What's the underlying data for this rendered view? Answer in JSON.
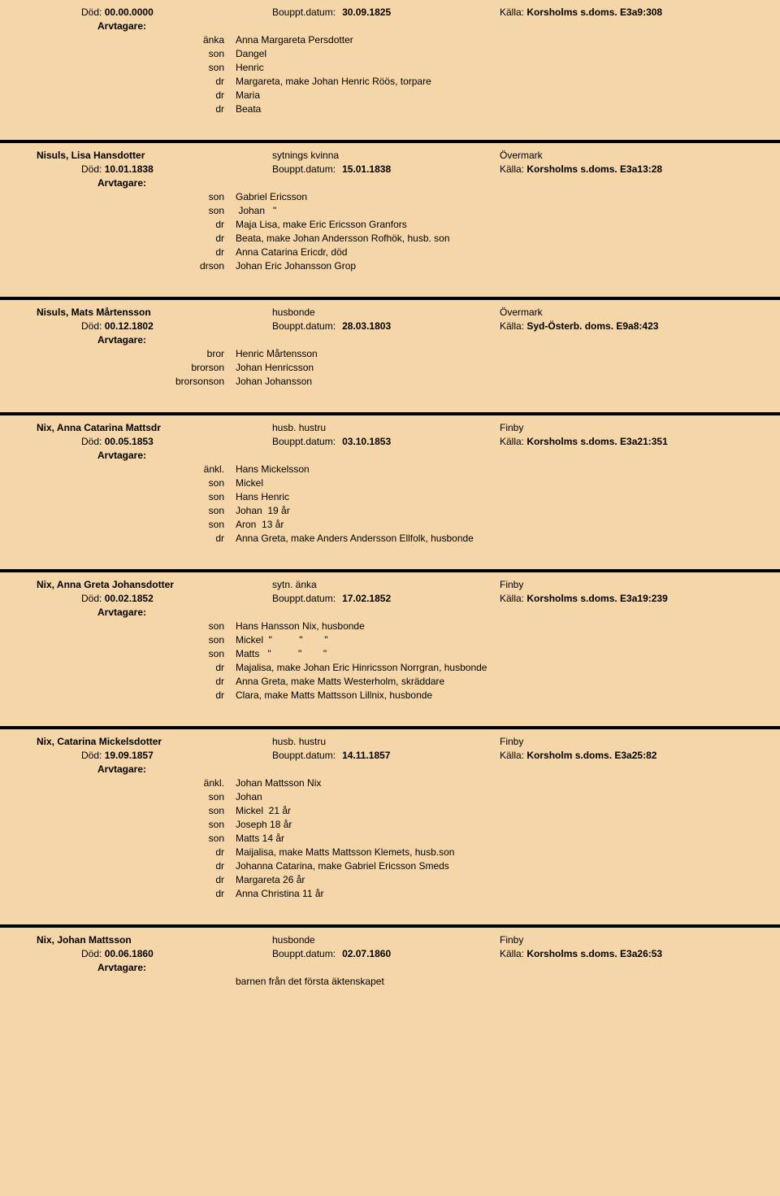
{
  "labels": {
    "dod": "Död:",
    "boupptdatum": "Bouppt.datum:",
    "kalla": "Källa:",
    "arvtagare": "Arvtagare:"
  },
  "records": [
    {
      "name": "",
      "dod": "00.00.0000",
      "boupptdatum": "30.09.1825",
      "kalla": "Korsholms s.doms. E3a9:308",
      "role": "",
      "place": "",
      "heirs": [
        {
          "role": "änka",
          "text": "Anna Margareta Persdotter"
        },
        {
          "role": "son",
          "text": "Dangel"
        },
        {
          "role": "son",
          "text": "Henric"
        },
        {
          "role": "dr",
          "text": "Margareta, make Johan Henric Röös, torpare"
        },
        {
          "role": "dr",
          "text": "Maria"
        },
        {
          "role": "dr",
          "text": "Beata"
        }
      ]
    },
    {
      "name": "Nisuls, Lisa Hansdotter",
      "dod": "10.01.1838",
      "boupptdatum": "15.01.1838",
      "kalla": "Korsholms s.doms. E3a13:28",
      "role": "sytnings kvinna",
      "place": "Övermark",
      "heirs": [
        {
          "role": "son",
          "text": "Gabriel Ericsson"
        },
        {
          "role": "son",
          "text": " Johan   \""
        },
        {
          "role": "dr",
          "text": "Maja Lisa, make Eric Ericsson Granfors"
        },
        {
          "role": "dr",
          "text": "Beata, make Johan Andersson Rofhök, husb. son"
        },
        {
          "role": "dr",
          "text": "Anna Catarina Ericdr, död"
        },
        {
          "role": "drson",
          "text": "Johan Eric Johansson Grop"
        }
      ]
    },
    {
      "name": "Nisuls, Mats Mårtensson",
      "dod": "00.12.1802",
      "boupptdatum": "28.03.1803",
      "kalla": "Syd-Österb. doms. E9a8:423",
      "role": "husbonde",
      "place": "Övermark",
      "heirs": [
        {
          "role": "bror",
          "text": "Henric Mårtensson"
        },
        {
          "role": "brorson",
          "text": "Johan Henricsson"
        },
        {
          "role": "brorsonson",
          "text": "Johan Johansson"
        }
      ]
    },
    {
      "name": "Nix, Anna Catarina Mattsdr",
      "dod": "00.05.1853",
      "boupptdatum": "03.10.1853",
      "kalla": "Korsholms s.doms. E3a21:351",
      "role": "husb. hustru",
      "place": "Finby",
      "heirs": [
        {
          "role": "änkl.",
          "text": "Hans Mickelsson"
        },
        {
          "role": "son",
          "text": "Mickel"
        },
        {
          "role": "son",
          "text": "Hans Henric"
        },
        {
          "role": "son",
          "text": "Johan  19 år"
        },
        {
          "role": "son",
          "text": "Aron  13 år"
        },
        {
          "role": "dr",
          "text": "Anna Greta, make Anders Andersson Ellfolk, husbonde"
        }
      ]
    },
    {
      "name": "Nix, Anna Greta Johansdotter",
      "dod": "00.02.1852",
      "boupptdatum": "17.02.1852",
      "kalla": "Korsholms s.doms. E3a19:239",
      "role": "sytn. änka",
      "place": "Finby",
      "heirs": [
        {
          "role": "son",
          "text": "Hans Hansson Nix, husbonde"
        },
        {
          "role": "son",
          "text": "Mickel  \"          \"        \""
        },
        {
          "role": "son",
          "text": "Matts   \"          \"        \""
        },
        {
          "role": "dr",
          "text": "Majalisa, make Johan Eric Hinricsson Norrgran, husbonde"
        },
        {
          "role": "dr",
          "text": "Anna Greta, make Matts Westerholm, skräddare"
        },
        {
          "role": "dr",
          "text": "Clara, make Matts Mattsson Lillnix, husbonde"
        }
      ]
    },
    {
      "name": "Nix, Catarina Mickelsdotter",
      "dod": "19.09.1857",
      "boupptdatum": "14.11.1857",
      "kalla": "Korsholm s.doms. E3a25:82",
      "role": "husb. hustru",
      "place": "Finby",
      "heirs": [
        {
          "role": "änkl.",
          "text": "Johan Mattsson Nix"
        },
        {
          "role": "son",
          "text": "Johan"
        },
        {
          "role": "son",
          "text": "Mickel  21 år"
        },
        {
          "role": "son",
          "text": "Joseph 18 år"
        },
        {
          "role": "son",
          "text": "Matts 14 år"
        },
        {
          "role": "dr",
          "text": "Maijalisa, make Matts Mattsson Klemets, husb.son"
        },
        {
          "role": "dr",
          "text": "Johanna Catarina, make Gabriel Ericsson Smeds"
        },
        {
          "role": "dr",
          "text": "Margareta 26 år"
        },
        {
          "role": "dr",
          "text": "Anna Christina 11 år"
        }
      ]
    },
    {
      "name": "Nix, Johan Mattsson",
      "dod": "00.06.1860",
      "boupptdatum": "02.07.1860",
      "kalla": "Korsholms s.doms. E3a26:53",
      "role": "husbonde",
      "place": "Finby",
      "heirs": [],
      "extra": "barnen från det första äktenskapet"
    }
  ]
}
